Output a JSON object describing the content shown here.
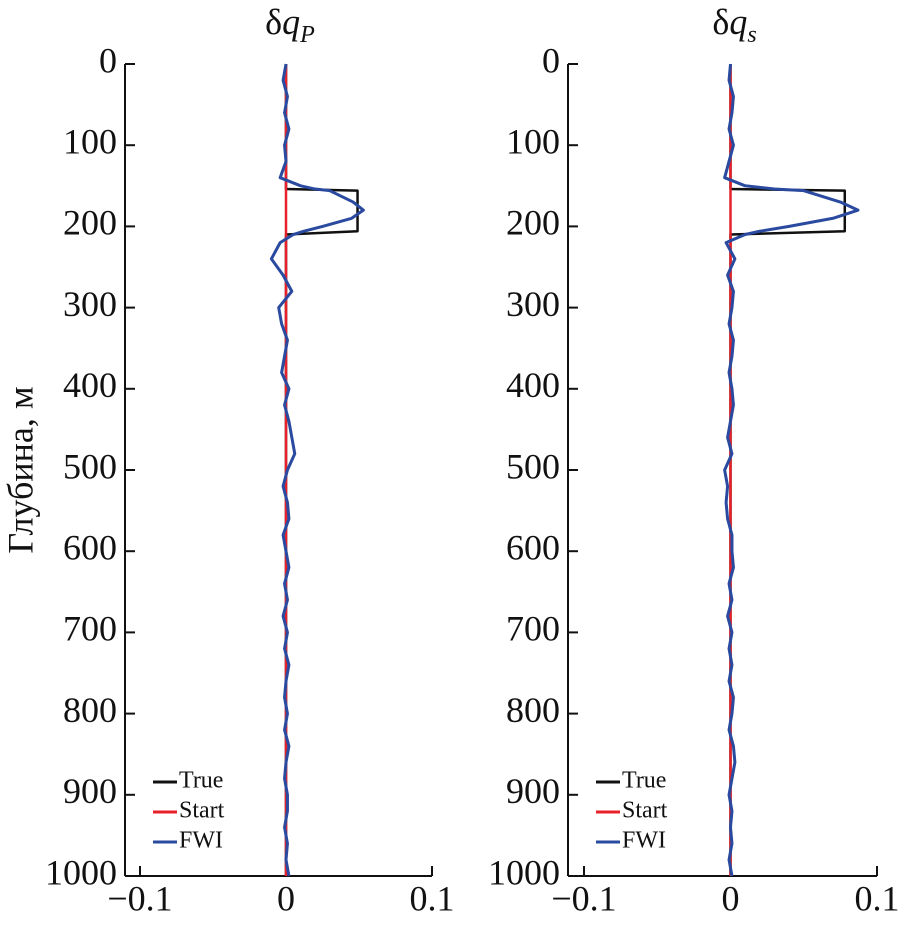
{
  "chart_data": [
    {
      "type": "line",
      "title": "δq",
      "title_subscript": "P",
      "ylabel": "Глубина, м",
      "xlim": [
        -0.1,
        0.1
      ],
      "xticks": [
        {
          "value": -0.1,
          "label": "−0.1"
        },
        0,
        0.1
      ],
      "ylim": [
        0,
        1000
      ],
      "y_inverted": true,
      "yticks": [
        0,
        100,
        200,
        300,
        400,
        500,
        600,
        700,
        800,
        900,
        1000
      ],
      "legend": "lower left",
      "depth": [
        0,
        20,
        40,
        60,
        80,
        100,
        120,
        140,
        150,
        154,
        156,
        170,
        180,
        190,
        200,
        206,
        210,
        220,
        240,
        260,
        280,
        300,
        320,
        340,
        360,
        380,
        400,
        420,
        440,
        460,
        480,
        500,
        520,
        540,
        560,
        580,
        600,
        620,
        640,
        660,
        680,
        700,
        720,
        740,
        760,
        780,
        800,
        820,
        840,
        860,
        880,
        900,
        920,
        940,
        960,
        980,
        1000
      ],
      "series": [
        {
          "name": "True",
          "color": "#111111",
          "values": [
            0,
            0,
            0,
            0,
            0,
            0,
            0,
            0,
            0,
            0,
            0.049,
            0.049,
            0.049,
            0.049,
            0.049,
            0.049,
            0,
            0,
            0,
            0,
            0,
            0,
            0,
            0,
            0,
            0,
            0,
            0,
            0,
            0,
            0,
            0,
            0,
            0,
            0,
            0,
            0,
            0,
            0,
            0,
            0,
            0,
            0,
            0,
            0,
            0,
            0,
            0,
            0,
            0,
            0,
            0,
            0,
            0,
            0,
            0,
            0
          ]
        },
        {
          "name": "Start",
          "color": "#e8202a",
          "values": [
            0,
            0,
            0,
            0,
            0,
            0,
            0,
            0,
            0,
            0,
            0,
            0,
            0,
            0,
            0,
            0,
            0,
            0,
            0,
            0,
            0,
            0,
            0,
            0,
            0,
            0,
            0,
            0,
            0,
            0,
            0,
            0,
            0,
            0,
            0,
            0,
            0,
            0,
            0,
            0,
            0,
            0,
            0,
            0,
            0,
            0,
            0,
            0,
            0,
            0,
            0,
            0,
            0,
            0,
            0,
            0,
            0
          ]
        },
        {
          "name": "FWI",
          "color": "#2a4aa0",
          "values": [
            0,
            -0.002,
            0.001,
            -0.001,
            0.002,
            -0.001,
            0,
            -0.004,
            0.01,
            0.02,
            0.03,
            0.046,
            0.053,
            0.045,
            0.025,
            0.012,
            0.005,
            -0.004,
            -0.01,
            -0.002,
            0.004,
            -0.005,
            -0.003,
            0.001,
            -0.001,
            -0.003,
            0.002,
            -0.001,
            0.002,
            0.004,
            0.006,
            0.001,
            -0.002,
            0.001,
            0.002,
            -0.002,
            0,
            0.002,
            -0.001,
            0.001,
            -0.002,
            0.001,
            -0.001,
            0.002,
            0,
            -0.001,
            0.001,
            -0.001,
            0.002,
            0,
            -0.001,
            0.001,
            0.001,
            -0.001,
            0.001,
            0,
            0.002
          ]
        }
      ]
    },
    {
      "type": "line",
      "title": "δq",
      "title_subscript": "s",
      "xlim": [
        -0.1,
        0.1
      ],
      "xticks": [
        {
          "value": -0.1,
          "label": "−0.1"
        },
        0,
        0.1
      ],
      "ylim": [
        0,
        1000
      ],
      "y_inverted": true,
      "yticks": [
        0,
        100,
        200,
        300,
        400,
        500,
        600,
        700,
        800,
        900,
        1000
      ],
      "legend": "lower left",
      "depth": [
        0,
        20,
        40,
        60,
        80,
        100,
        120,
        140,
        150,
        154,
        156,
        170,
        180,
        190,
        200,
        206,
        210,
        220,
        240,
        260,
        280,
        300,
        320,
        340,
        360,
        380,
        400,
        420,
        440,
        460,
        480,
        500,
        520,
        540,
        560,
        580,
        600,
        620,
        640,
        660,
        680,
        700,
        720,
        740,
        760,
        780,
        800,
        820,
        840,
        860,
        880,
        900,
        920,
        940,
        960,
        980,
        1000
      ],
      "series": [
        {
          "name": "True",
          "color": "#111111",
          "values": [
            0,
            0,
            0,
            0,
            0,
            0,
            0,
            0,
            0,
            0,
            0.078,
            0.078,
            0.078,
            0.078,
            0.078,
            0.078,
            0,
            0,
            0,
            0,
            0,
            0,
            0,
            0,
            0,
            0,
            0,
            0,
            0,
            0,
            0,
            0,
            0,
            0,
            0,
            0,
            0,
            0,
            0,
            0,
            0,
            0,
            0,
            0,
            0,
            0,
            0,
            0,
            0,
            0,
            0,
            0,
            0,
            0,
            0,
            0,
            0
          ]
        },
        {
          "name": "Start",
          "color": "#e8202a",
          "values": [
            0,
            0,
            0,
            0,
            0,
            0,
            0,
            0,
            0,
            0,
            0,
            0,
            0,
            0,
            0,
            0,
            0,
            0,
            0,
            0,
            0,
            0,
            0,
            0,
            0,
            0,
            0,
            0,
            0,
            0,
            0,
            0,
            0,
            0,
            0,
            0,
            0,
            0,
            0,
            0,
            0,
            0,
            0,
            0,
            0,
            0,
            0,
            0,
            0,
            0,
            0,
            0,
            0,
            0,
            0,
            0,
            0
          ]
        },
        {
          "name": "FWI",
          "color": "#2a4aa0",
          "values": [
            0,
            -0.001,
            0.002,
            0.001,
            -0.001,
            0.002,
            -0.001,
            -0.004,
            0.01,
            0.03,
            0.05,
            0.075,
            0.087,
            0.07,
            0.04,
            0.02,
            0.01,
            -0.003,
            0.003,
            -0.002,
            0.002,
            0.001,
            -0.001,
            0.002,
            0.001,
            -0.001,
            0.001,
            0.002,
            0,
            -0.002,
            0.001,
            -0.004,
            -0.002,
            -0.003,
            -0.002,
            0.001,
            0.001,
            0.002,
            -0.001,
            0.001,
            -0.002,
            0.001,
            -0.001,
            0.001,
            -0.001,
            0.002,
            0.001,
            -0.001,
            0.002,
            0.003,
            0.001,
            -0.001,
            0.001,
            0,
            0.001,
            -0.001,
            0.001
          ]
        }
      ]
    }
  ]
}
